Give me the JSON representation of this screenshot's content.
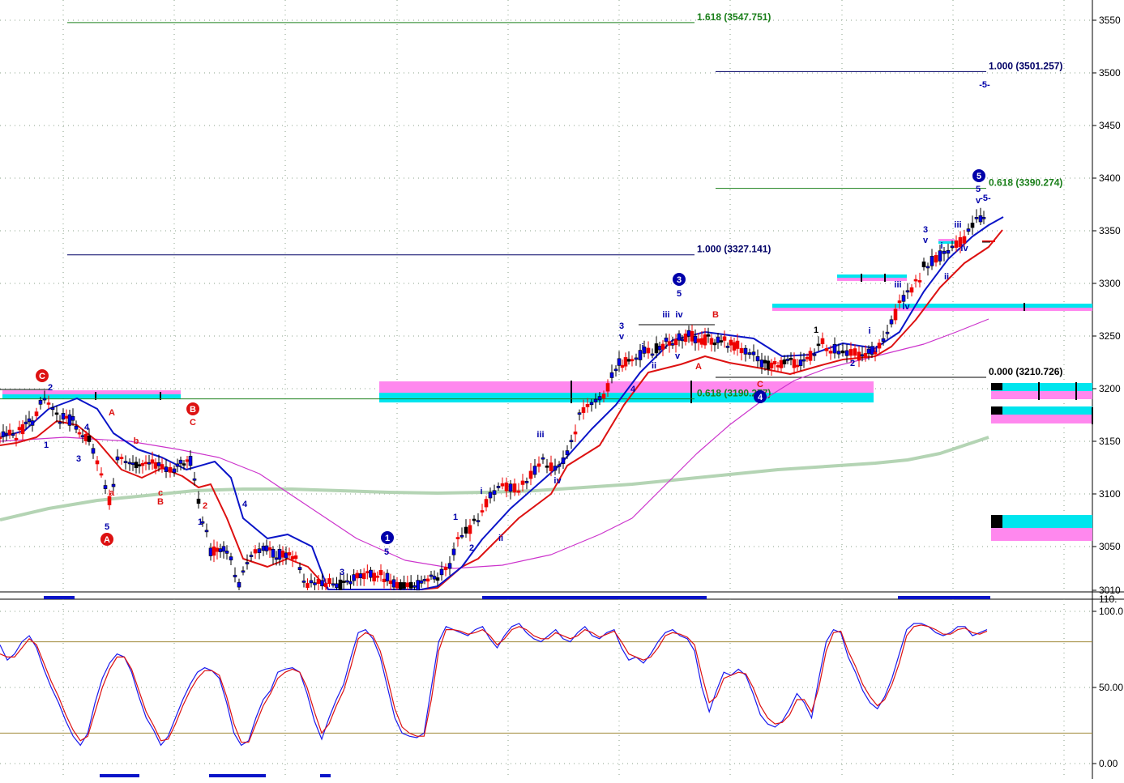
{
  "chart_data": [
    {
      "type": "candlestick",
      "title": "",
      "xlabel": "",
      "ylabel": "",
      "ylim": [
        3010,
        3560
      ],
      "y_ticks": [
        {
          "value": 3550,
          "label": "3550"
        },
        {
          "value": 3500,
          "label": "3500"
        },
        {
          "value": 3450,
          "label": "3450"
        },
        {
          "value": 3400,
          "label": "3400"
        },
        {
          "value": 3350,
          "label": "3350"
        },
        {
          "value": 3300,
          "label": "3300"
        },
        {
          "value": 3250,
          "label": "3250"
        },
        {
          "value": 3200,
          "label": "3200"
        },
        {
          "value": 3150,
          "label": "3150"
        },
        {
          "value": 3100,
          "label": "3100"
        },
        {
          "value": 3050,
          "label": "3050"
        },
        {
          "value": 3010,
          "label": "3010"
        }
      ],
      "grid": true,
      "fib_levels": [
        {
          "label": "1.618 (3547.751)",
          "value": 3547.751,
          "color": "#1a7f1a"
        },
        {
          "label": "1.000 (3501.257)",
          "value": 3501.257,
          "color": "#000066"
        },
        {
          "label": "0.618 (3390.274)",
          "value": 3390.274,
          "color": "#1a7f1a"
        },
        {
          "label": "1.000 (3327.141)",
          "value": 3327.141,
          "color": "#000066"
        },
        {
          "label": "0.000 (3210.726)",
          "value": 3210.726,
          "color": "#000000"
        },
        {
          "label": "0.618 (3190.277)",
          "value": 3190.277,
          "color": "#1a7f1a"
        }
      ],
      "wave_labels": [
        {
          "text": "C",
          "circled": true,
          "color": "#dd1111"
        },
        {
          "text": "2",
          "circled": false,
          "color": "#0000aa"
        },
        {
          "text": "1",
          "circled": false,
          "color": "#0000aa"
        },
        {
          "text": "4",
          "circled": false,
          "color": "#0000aa"
        },
        {
          "text": "3",
          "circled": false,
          "color": "#0000aa"
        },
        {
          "text": "A",
          "circled": false,
          "color": "#dd1111"
        },
        {
          "text": "b",
          "circled": false,
          "color": "#dd1111"
        },
        {
          "text": "a",
          "circled": false,
          "color": "#dd1111"
        },
        {
          "text": "c",
          "circled": false,
          "color": "#dd1111"
        },
        {
          "text": "B",
          "circled": false,
          "color": "#dd1111"
        },
        {
          "text": "5",
          "circled": false,
          "color": "#0000aa"
        },
        {
          "text": "A",
          "circled": true,
          "color": "#dd1111"
        },
        {
          "text": "B",
          "circled": true,
          "color": "#dd1111"
        },
        {
          "text": "C",
          "circled": false,
          "color": "#dd1111"
        },
        {
          "text": "2",
          "circled": false,
          "color": "#dd1111"
        },
        {
          "text": "1",
          "circled": false,
          "color": "#0000aa"
        },
        {
          "text": "4",
          "circled": false,
          "color": "#0000aa"
        },
        {
          "text": "3",
          "circled": false,
          "color": "#0000aa"
        },
        {
          "text": "1",
          "circled": true,
          "color": "#0000aa"
        },
        {
          "text": "5",
          "circled": false,
          "color": "#0000aa"
        },
        {
          "text": "1",
          "circled": false,
          "color": "#0000aa"
        },
        {
          "text": "2",
          "circled": false,
          "color": "#0000aa"
        },
        {
          "text": "i",
          "circled": false,
          "color": "#0000aa"
        },
        {
          "text": "ii",
          "circled": false,
          "color": "#0000aa"
        },
        {
          "text": "iii",
          "circled": false,
          "color": "#0000aa"
        },
        {
          "text": "iv",
          "circled": false,
          "color": "#0000aa"
        },
        {
          "text": "v",
          "circled": false,
          "color": "#0000aa"
        },
        {
          "text": "3",
          "circled": false,
          "color": "#0000aa"
        },
        {
          "text": "4",
          "circled": false,
          "color": "#0000aa"
        },
        {
          "text": "i",
          "circled": false,
          "color": "#0000aa"
        },
        {
          "text": "ii",
          "circled": false,
          "color": "#0000aa"
        },
        {
          "text": "iii",
          "circled": false,
          "color": "#0000aa"
        },
        {
          "text": "v",
          "circled": false,
          "color": "#0000aa"
        },
        {
          "text": "iv",
          "circled": false,
          "color": "#0000aa"
        },
        {
          "text": "3",
          "circled": true,
          "color": "#0000aa"
        },
        {
          "text": "5",
          "circled": false,
          "color": "#0000aa"
        },
        {
          "text": "B",
          "circled": false,
          "color": "#dd1111"
        },
        {
          "text": "A",
          "circled": false,
          "color": "#dd1111"
        },
        {
          "text": "C",
          "circled": false,
          "color": "#dd1111"
        },
        {
          "text": "4",
          "circled": true,
          "color": "#0000aa"
        },
        {
          "text": "1",
          "circled": false,
          "color": "#000000"
        },
        {
          "text": "2",
          "circled": false,
          "color": "#0000aa"
        },
        {
          "text": "i",
          "circled": false,
          "color": "#0000aa"
        },
        {
          "text": "ii",
          "circled": false,
          "color": "#0000aa"
        },
        {
          "text": "iii",
          "circled": false,
          "color": "#0000aa"
        },
        {
          "text": "iv",
          "circled": false,
          "color": "#0000aa"
        },
        {
          "text": "3",
          "circled": false,
          "color": "#0000aa"
        },
        {
          "text": "v",
          "circled": false,
          "color": "#0000aa"
        },
        {
          "text": "i",
          "circled": false,
          "color": "#0000aa"
        },
        {
          "text": "ii",
          "circled": false,
          "color": "#0000aa"
        },
        {
          "text": "iii",
          "circled": false,
          "color": "#0000aa"
        },
        {
          "text": "iv",
          "circled": false,
          "color": "#0000aa"
        },
        {
          "text": "5",
          "circled": true,
          "color": "#0000aa"
        },
        {
          "text": "5",
          "circled": false,
          "color": "#0000aa"
        },
        {
          "text": "v",
          "circled": false,
          "color": "#0000aa"
        },
        {
          "text": "-5-",
          "circled": false,
          "color": "#0000aa"
        },
        {
          "text": "-5-",
          "circled": false,
          "color": "#0000aa"
        }
      ],
      "colors": {
        "up_candle": "#0000ee",
        "down_candle": "#ee0000",
        "neutral_candle": "#000000",
        "ma_fast": "#0a14c8",
        "ma_mid": "#dd1111",
        "ma_slow": "#cc33cc",
        "ma_long": "#b4d4b4",
        "zone_cyan": "#00e5ee",
        "zone_magenta": "#ff88ee"
      }
    },
    {
      "type": "line",
      "title": "",
      "ylim": [
        0,
        100
      ],
      "y_ticks": [
        {
          "value": 110,
          "label": "110."
        },
        {
          "value": 100,
          "label": "100.0"
        },
        {
          "value": 50,
          "label": "50.00"
        },
        {
          "value": 0,
          "label": "0.00"
        }
      ],
      "reference_lines": [
        80,
        20
      ],
      "series": [
        {
          "color": "#1a1aee",
          "values": [
            78,
            68,
            72,
            80,
            84,
            76,
            62,
            50,
            40,
            28,
            18,
            12,
            20,
            40,
            56,
            66,
            72,
            70,
            60,
            44,
            30,
            22,
            12,
            18,
            30,
            42,
            52,
            60,
            63,
            61,
            56,
            40,
            20,
            12,
            15,
            30,
            42,
            48,
            60,
            62,
            63,
            60,
            46,
            28,
            16,
            30,
            42,
            52,
            70,
            86,
            88,
            82,
            70,
            50,
            30,
            20,
            18,
            17,
            20,
            50,
            80,
            90,
            88,
            86,
            84,
            88,
            90,
            82,
            76,
            84,
            90,
            92,
            86,
            82,
            80,
            84,
            88,
            82,
            80,
            86,
            90,
            84,
            82,
            86,
            88,
            76,
            68,
            70,
            66,
            72,
            80,
            86,
            88,
            84,
            82,
            74,
            50,
            34,
            48,
            60,
            58,
            62,
            58,
            46,
            32,
            26,
            24,
            28,
            36,
            46,
            40,
            30,
            56,
            80,
            88,
            86,
            70,
            60,
            48,
            40,
            36,
            44,
            56,
            72,
            88,
            92,
            92,
            90,
            86,
            84,
            86,
            90,
            90,
            84,
            86,
            88
          ]
        },
        {
          "color": "#dd1111",
          "values": [
            72,
            70,
            70,
            76,
            82,
            78,
            66,
            54,
            44,
            32,
            22,
            15,
            18,
            34,
            50,
            62,
            70,
            70,
            62,
            48,
            34,
            25,
            15,
            16,
            26,
            38,
            48,
            56,
            61,
            61,
            58,
            44,
            26,
            14,
            14,
            26,
            38,
            46,
            56,
            60,
            62,
            60,
            50,
            34,
            20,
            26,
            38,
            48,
            64,
            82,
            86,
            84,
            74,
            56,
            36,
            24,
            20,
            18,
            18,
            42,
            74,
            88,
            88,
            87,
            85,
            86,
            88,
            84,
            78,
            82,
            88,
            90,
            88,
            84,
            82,
            82,
            86,
            84,
            82,
            84,
            88,
            86,
            83,
            85,
            87,
            80,
            72,
            70,
            68,
            70,
            76,
            84,
            86,
            85,
            83,
            78,
            58,
            40,
            44,
            56,
            58,
            60,
            59,
            50,
            38,
            30,
            26,
            27,
            32,
            42,
            42,
            34,
            50,
            74,
            86,
            87,
            74,
            64,
            52,
            44,
            38,
            42,
            52,
            66,
            84,
            90,
            91,
            90,
            88,
            85,
            85,
            88,
            89,
            86,
            85,
            87
          ]
        }
      ]
    }
  ]
}
